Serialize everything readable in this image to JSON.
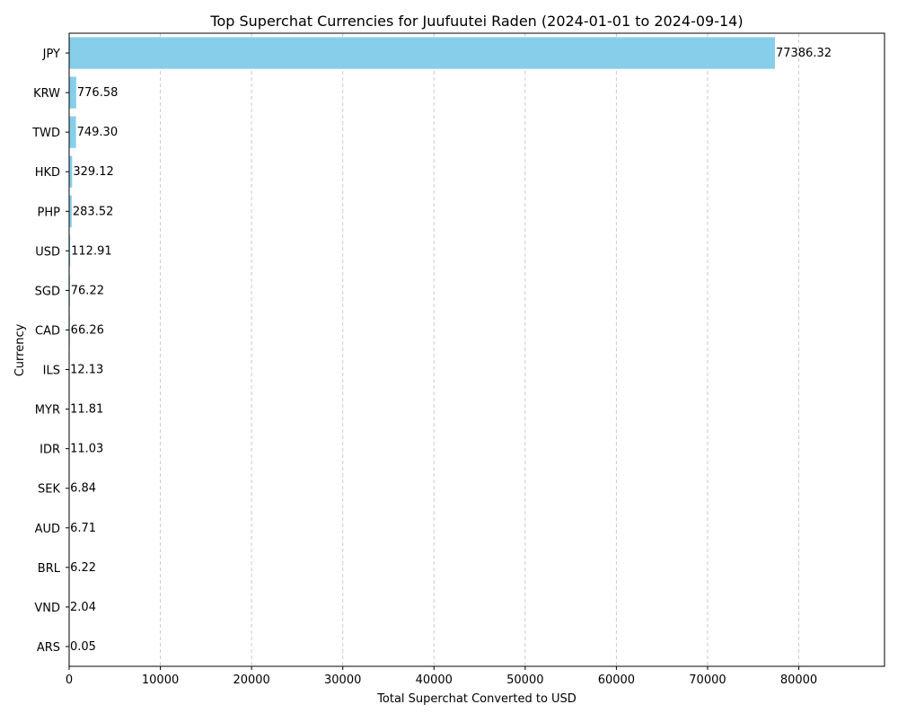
{
  "chart_data": {
    "type": "bar",
    "orientation": "horizontal",
    "title": "Top Superchat Currencies for Juufuutei Raden (2024-01-01 to 2024-09-14)",
    "xlabel": "Total Superchat Converted to USD",
    "ylabel": "Currency",
    "categories": [
      "JPY",
      "KRW",
      "TWD",
      "HKD",
      "PHP",
      "USD",
      "SGD",
      "CAD",
      "ILS",
      "MYR",
      "IDR",
      "SEK",
      "AUD",
      "BRL",
      "VND",
      "ARS"
    ],
    "values": [
      77386.32,
      776.58,
      749.3,
      329.12,
      283.52,
      112.91,
      76.22,
      66.26,
      12.13,
      11.81,
      11.03,
      6.84,
      6.71,
      6.22,
      2.04,
      0.05
    ],
    "value_labels": [
      "77386.32",
      "776.58",
      "749.30",
      "329.12",
      "283.52",
      "112.91",
      "76.22",
      "66.26",
      "12.13",
      "11.81",
      "11.03",
      "6.84",
      "6.71",
      "6.22",
      "2.04",
      "0.05"
    ],
    "xticks": [
      0,
      10000,
      20000,
      30000,
      40000,
      50000,
      60000,
      70000,
      80000
    ],
    "xtick_labels": [
      "0",
      "10000",
      "20000",
      "30000",
      "40000",
      "50000",
      "60000",
      "70000",
      "80000"
    ],
    "xlim": [
      0,
      89400
    ],
    "grid": "x-dashed",
    "colors": {
      "bar": "#87ceeb",
      "grid": "#cccccc",
      "axis": "#000000"
    }
  }
}
